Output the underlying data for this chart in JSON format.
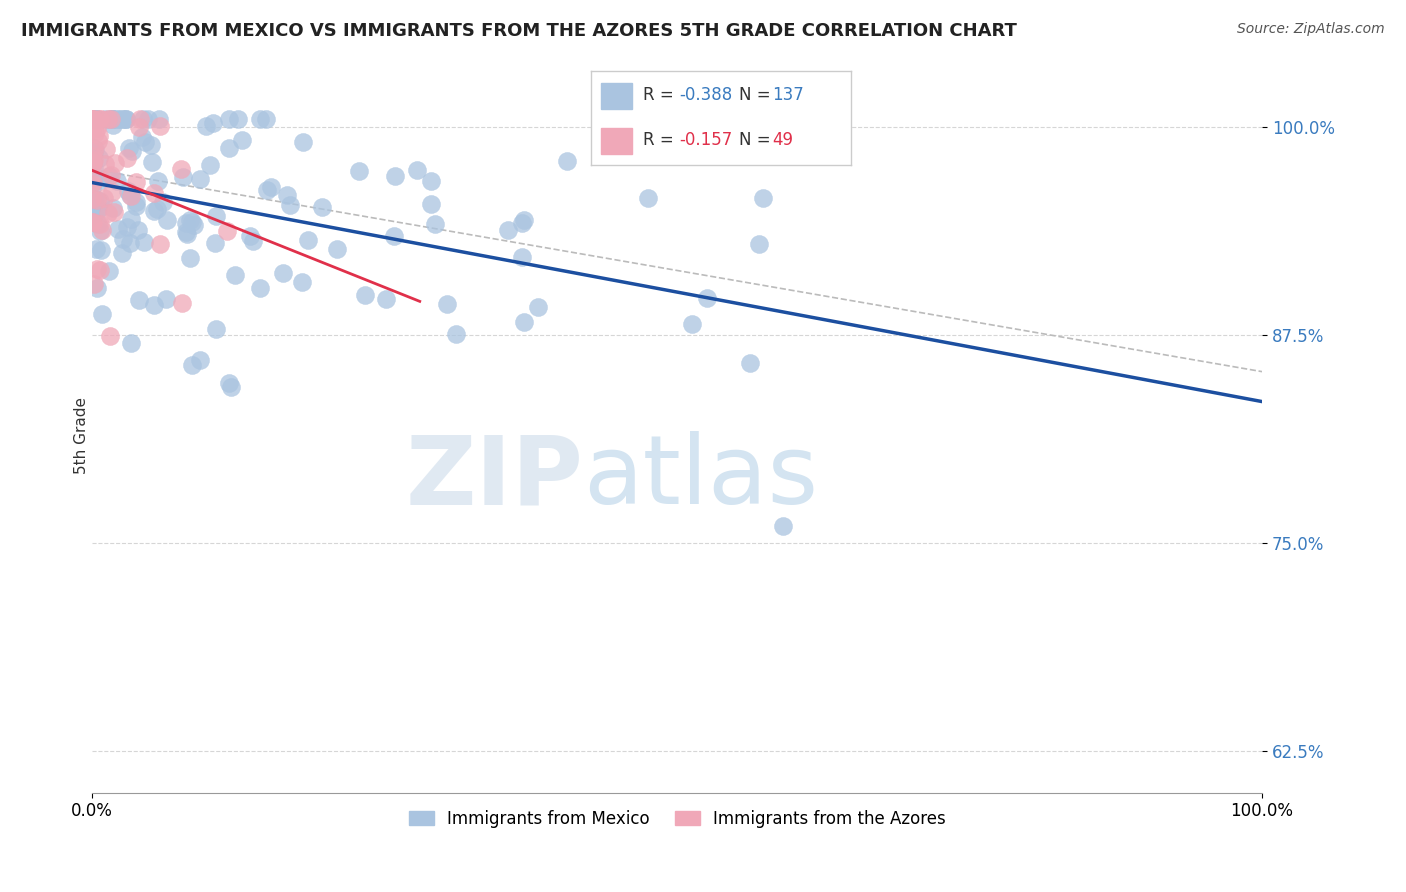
{
  "title": "IMMIGRANTS FROM MEXICO VS IMMIGRANTS FROM THE AZORES 5TH GRADE CORRELATION CHART",
  "source": "Source: ZipAtlas.com",
  "ylabel": "5th Grade",
  "ytick_vals": [
    0.625,
    0.75,
    0.875,
    1.0
  ],
  "ytick_labels": [
    "62.5%",
    "75.0%",
    "87.5%",
    "100.0%"
  ],
  "xtick_vals": [
    0.0,
    1.0
  ],
  "xtick_labels": [
    "0.0%",
    "100.0%"
  ],
  "legend_blue_r": "-0.388",
  "legend_blue_n": "137",
  "legend_pink_r": "-0.157",
  "legend_pink_n": "49",
  "legend_item1": "Immigrants from Mexico",
  "legend_item2": "Immigrants from the Azores",
  "blue_color": "#aac4e0",
  "pink_color": "#f0a8b8",
  "blue_line_color": "#1c4fa0",
  "pink_line_color": "#e0304a",
  "gray_dashed_color": "#bbbbbb",
  "background_color": "#ffffff",
  "watermark_zip": "ZIP",
  "watermark_atlas": "atlas",
  "xlim": [
    0.0,
    1.0
  ],
  "ylim": [
    0.6,
    1.03
  ],
  "blue_seed": 42,
  "pink_seed": 7,
  "N_blue": 137,
  "N_pink": 49
}
